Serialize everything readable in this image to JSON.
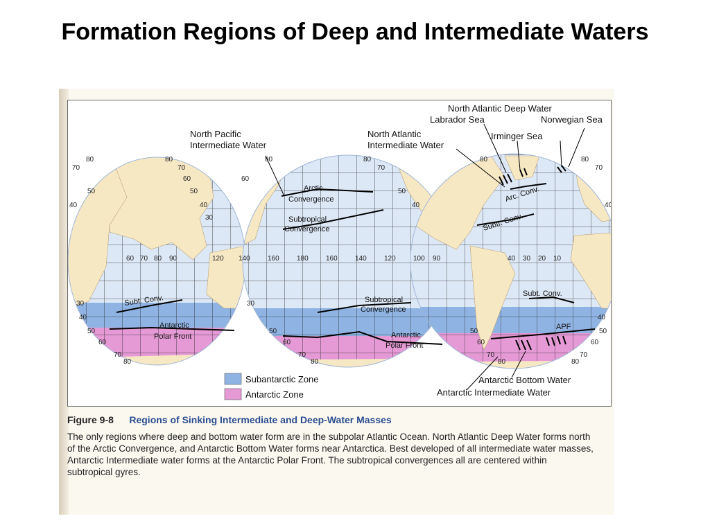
{
  "slide": {
    "title": "Formation Regions of Deep and Intermediate Waters"
  },
  "map": {
    "callouts": {
      "north_atlantic_deep_water": "North Atlantic Deep Water",
      "labrador_sea": "Labrador Sea",
      "norwegian_sea": "Norwegian Sea",
      "irminger_sea": "Irminger Sea",
      "north_pacific_intermediate_water_1": "North Pacific",
      "north_pacific_intermediate_water_2": "Intermediate Water",
      "north_atlantic_intermediate_water_1": "North Atlantic",
      "north_atlantic_intermediate_water_2": "Intermediate Water",
      "antarctic_bottom_water": "Antarctic Bottom Water",
      "antarctic_intermediate_water": "Antarctic Intermediate Water"
    },
    "lines": {
      "arctic_convergence_1": "Arctic",
      "arctic_convergence_2": "Convergence",
      "subtropical_convergence_1": "Subtropical",
      "subtropical_convergence_2": "Convergence",
      "subtropical_convergence_s_1": "Subtropical",
      "subtropical_convergence_s_2": "Convergence",
      "subt_conv_w": "Subt. Conv.",
      "subt_conv_e": "Subt. Conv.",
      "arc_conv": "Arc. Conv.",
      "subtr_conv": "Subtr. Conv.",
      "antarctic_polar_front_w_1": "Antarctic",
      "antarctic_polar_front_w_2": "Polar Front",
      "antarctic_polar_front_c_1": "Antarctic",
      "antarctic_polar_front_c_2": "Polar Front",
      "apf": "APF"
    },
    "longitudes": [
      "60",
      "70",
      "80",
      "90",
      "120",
      "140",
      "160",
      "180",
      "160",
      "140",
      "120",
      "100",
      "90",
      "40",
      "30",
      "20",
      "10"
    ],
    "latitudes": {
      "n80": "80",
      "n70": "70",
      "n60": "60",
      "n50": "50",
      "n40": "40",
      "n30": "30",
      "s30": "30",
      "s40": "40",
      "s50": "50",
      "s60": "60",
      "s70": "70",
      "s80": "80"
    },
    "legend": [
      {
        "label": "Subantarctic Zone",
        "color": "#8fb4e3"
      },
      {
        "label": "Antarctic Zone",
        "color": "#e59ad6"
      }
    ],
    "colors": {
      "ocean": "#dde8f6",
      "land": "#f7e8c4",
      "subantarctic": "#8fb4e3",
      "antarctic": "#e59ad6"
    }
  },
  "caption": {
    "figure_number": "Figure 9-8",
    "figure_title": "Regions of Sinking Intermediate and Deep-Water Masses",
    "text": "The only regions where deep and bottom water form are in the subpolar Atlantic Ocean. North Atlantic Deep Water forms north of the Arctic Convergence, and Antarctic Bottom Water forms near Antarctica. Best developed of all intermediate water masses, Antarctic Intermediate water forms at the Antarctic Polar Front. The subtropical convergences all are centered within subtropical gyres."
  }
}
